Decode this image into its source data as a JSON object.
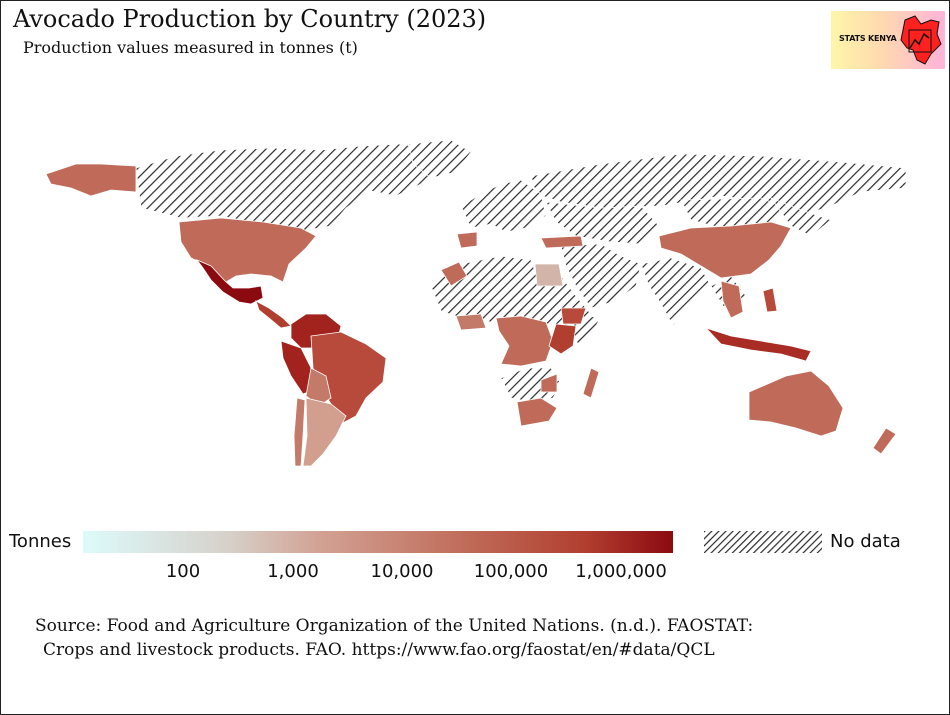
{
  "title": "Avocado Production by Country (2023)",
  "subtitle": "Production values measured in tonnes (t)",
  "logo": {
    "text": "STATS KENYA",
    "color": "#ff2020"
  },
  "legend": {
    "title": "Tonnes",
    "ticks": [
      "100",
      "1,000",
      "10,000",
      "100,000",
      "1,000,000"
    ],
    "no_data_label": "No data",
    "scale": "log",
    "colors": [
      "#ddfbfb",
      "#d6d0c9",
      "#d2a294",
      "#c06b59",
      "#b13f30",
      "#8b0a10"
    ]
  },
  "source": {
    "line1": "Source: Food and Agriculture Organization of the United Nations. (n.d.). FAOSTAT:",
    "line2": "Crops and livestock products. FAO. https://www.fao.org/faostat/en/#data/QCL"
  },
  "map": {
    "type": "choropleth",
    "no_data_pattern": "diagonal-hatch",
    "countries": [
      {
        "name": "United States",
        "level": "high",
        "color": "#c06b59"
      },
      {
        "name": "Mexico",
        "level": "highest",
        "color": "#8b0a10"
      },
      {
        "name": "Peru",
        "level": "very-high",
        "color": "#a2231e"
      },
      {
        "name": "Colombia",
        "level": "very-high",
        "color": "#a2231e"
      },
      {
        "name": "Brazil",
        "level": "high",
        "color": "#b84a3c"
      },
      {
        "name": "Chile",
        "level": "medium-high",
        "color": "#c47a68"
      },
      {
        "name": "Argentina",
        "level": "medium",
        "color": "#d29f8f"
      },
      {
        "name": "China",
        "level": "high",
        "color": "#c06b59"
      },
      {
        "name": "Indonesia",
        "level": "very-high",
        "color": "#a82c24"
      },
      {
        "name": "Australia",
        "level": "high",
        "color": "#c06b59"
      },
      {
        "name": "Kenya",
        "level": "very-high",
        "color": "#b13f30"
      },
      {
        "name": "Ethiopia",
        "level": "high",
        "color": "#b84a3c"
      },
      {
        "name": "South Africa",
        "level": "high",
        "color": "#c06b59"
      },
      {
        "name": "Egypt",
        "level": "low",
        "color": "#d2b5a8"
      }
    ]
  }
}
